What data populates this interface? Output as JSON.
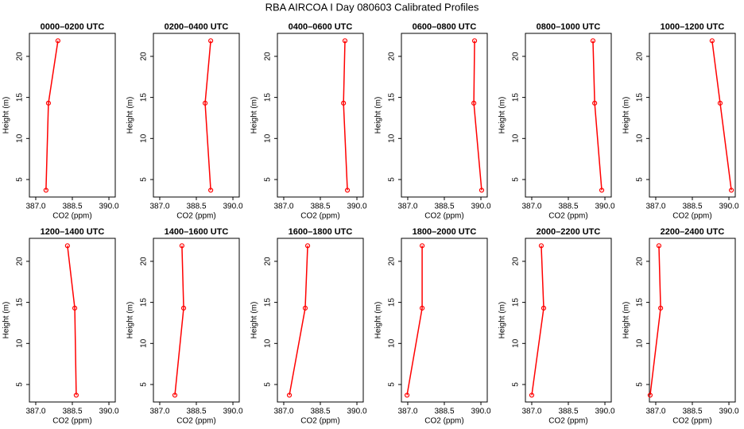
{
  "title": "RBA AIRCOA I  Day 080603  Calibrated Profiles",
  "chart_data": [
    {
      "type": "line",
      "title": "0000–0200 UTC",
      "xlabel": "CO2 (ppm)",
      "ylabel": "Height (m)",
      "xlim": [
        386.74,
        390.26
      ],
      "ylim": [
        2.87,
        22.8
      ],
      "xticks": [
        {
          "value": 387,
          "label": "387.0"
        },
        388.5,
        {
          "value": 390,
          "label": "390.0"
        }
      ],
      "yticks": [
        5,
        10,
        15,
        20
      ],
      "series": [
        {
          "color": "#ff0000",
          "x": [
            387.91,
            387.52,
            387.42
          ],
          "values": [
            21.9,
            14.3,
            3.7
          ]
        }
      ]
    },
    {
      "type": "line",
      "title": "0200–0400 UTC",
      "xlabel": "CO2 (ppm)",
      "ylabel": "Height (m)",
      "xlim": [
        386.74,
        390.26
      ],
      "ylim": [
        2.87,
        22.8
      ],
      "xticks": [
        {
          "value": 387,
          "label": "387.0"
        },
        388.5,
        {
          "value": 390,
          "label": "390.0"
        }
      ],
      "yticks": [
        5,
        10,
        15,
        20
      ],
      "series": [
        {
          "color": "#ff0000",
          "x": [
            389.09,
            388.86,
            389.09
          ],
          "values": [
            21.9,
            14.3,
            3.7
          ]
        }
      ]
    },
    {
      "type": "line",
      "title": "0400–0600 UTC",
      "xlabel": "CO2 (ppm)",
      "ylabel": "Height (m)",
      "xlim": [
        386.74,
        390.26
      ],
      "ylim": [
        2.87,
        22.8
      ],
      "xticks": [
        {
          "value": 387,
          "label": "387.0"
        },
        388.5,
        {
          "value": 390,
          "label": "390.0"
        }
      ],
      "yticks": [
        5,
        10,
        15,
        20
      ],
      "series": [
        {
          "color": "#ff0000",
          "x": [
            389.51,
            389.45,
            389.61
          ],
          "values": [
            21.9,
            14.3,
            3.7
          ]
        }
      ]
    },
    {
      "type": "line",
      "title": "0600–0800 UTC",
      "xlabel": "CO2 (ppm)",
      "ylabel": "Height (m)",
      "xlim": [
        386.74,
        390.26
      ],
      "ylim": [
        2.87,
        22.8
      ],
      "xticks": [
        {
          "value": 387,
          "label": "387.0"
        },
        388.5,
        {
          "value": 390,
          "label": "390.0"
        }
      ],
      "yticks": [
        5,
        10,
        15,
        20
      ],
      "series": [
        {
          "color": "#ff0000",
          "x": [
            389.74,
            389.71,
            390.03
          ],
          "values": [
            21.9,
            14.3,
            3.7
          ]
        }
      ]
    },
    {
      "type": "line",
      "title": "0800–1000 UTC",
      "xlabel": "CO2 (ppm)",
      "ylabel": "Height (m)",
      "xlim": [
        386.74,
        390.26
      ],
      "ylim": [
        2.87,
        22.8
      ],
      "xticks": [
        {
          "value": 387,
          "label": "387.0"
        },
        388.5,
        {
          "value": 390,
          "label": "390.0"
        }
      ],
      "yticks": [
        5,
        10,
        15,
        20
      ],
      "series": [
        {
          "color": "#ff0000",
          "x": [
            389.51,
            389.58,
            389.87
          ],
          "values": [
            21.9,
            14.3,
            3.7
          ]
        }
      ]
    },
    {
      "type": "line",
      "title": "1000–1200 UTC",
      "xlabel": "CO2 (ppm)",
      "ylabel": "Height (m)",
      "xlim": [
        386.74,
        390.26
      ],
      "ylim": [
        2.87,
        22.8
      ],
      "xticks": [
        {
          "value": 387,
          "label": "387.0"
        },
        388.5,
        {
          "value": 390,
          "label": "390.0"
        }
      ],
      "yticks": [
        5,
        10,
        15,
        20
      ],
      "series": [
        {
          "color": "#ff0000",
          "x": [
            389.31,
            389.64,
            390.1
          ],
          "values": [
            21.9,
            14.3,
            3.7
          ]
        }
      ]
    },
    {
      "type": "line",
      "title": "1200–1400 UTC",
      "xlabel": "CO2 (ppm)",
      "ylabel": "Height (m)",
      "xlim": [
        386.74,
        390.26
      ],
      "ylim": [
        2.87,
        22.8
      ],
      "xticks": [
        {
          "value": 387,
          "label": "387.0"
        },
        388.5,
        {
          "value": 390,
          "label": "390.0"
        }
      ],
      "yticks": [
        5,
        10,
        15,
        20
      ],
      "series": [
        {
          "color": "#ff0000",
          "x": [
            388.3,
            388.6,
            388.66
          ],
          "values": [
            21.9,
            14.3,
            3.7
          ]
        }
      ]
    },
    {
      "type": "line",
      "title": "1400–1600 UTC",
      "xlabel": "CO2 (ppm)",
      "ylabel": "Height (m)",
      "xlim": [
        386.74,
        390.26
      ],
      "ylim": [
        2.87,
        22.8
      ],
      "xticks": [
        {
          "value": 387,
          "label": "387.0"
        },
        388.5,
        {
          "value": 390,
          "label": "390.0"
        }
      ],
      "yticks": [
        5,
        10,
        15,
        20
      ],
      "series": [
        {
          "color": "#ff0000",
          "x": [
            387.91,
            387.98,
            387.62
          ],
          "values": [
            21.9,
            14.3,
            3.7
          ]
        }
      ]
    },
    {
      "type": "line",
      "title": "1600–1800 UTC",
      "xlabel": "CO2 (ppm)",
      "ylabel": "Height (m)",
      "xlim": [
        386.74,
        390.26
      ],
      "ylim": [
        2.87,
        22.8
      ],
      "xticks": [
        {
          "value": 387,
          "label": "387.0"
        },
        388.5,
        {
          "value": 390,
          "label": "390.0"
        }
      ],
      "yticks": [
        5,
        10,
        15,
        20
      ],
      "series": [
        {
          "color": "#ff0000",
          "x": [
            387.98,
            387.88,
            387.23
          ],
          "values": [
            21.9,
            14.3,
            3.7
          ]
        }
      ]
    },
    {
      "type": "line",
      "title": "1800–2000 UTC",
      "xlabel": "CO2 (ppm)",
      "ylabel": "Height (m)",
      "xlim": [
        386.74,
        390.26
      ],
      "ylim": [
        2.87,
        22.8
      ],
      "xticks": [
        {
          "value": 387,
          "label": "387.0"
        },
        388.5,
        {
          "value": 390,
          "label": "390.0"
        }
      ],
      "yticks": [
        5,
        10,
        15,
        20
      ],
      "series": [
        {
          "color": "#ff0000",
          "x": [
            387.59,
            387.59,
            386.97
          ],
          "values": [
            21.9,
            14.3,
            3.7
          ]
        }
      ]
    },
    {
      "type": "line",
      "title": "2000–2200 UTC",
      "xlabel": "CO2 (ppm)",
      "ylabel": "Height (m)",
      "xlim": [
        386.74,
        390.26
      ],
      "ylim": [
        2.87,
        22.8
      ],
      "xticks": [
        {
          "value": 387,
          "label": "387.0"
        },
        388.5,
        {
          "value": 390,
          "label": "390.0"
        }
      ],
      "yticks": [
        5,
        10,
        15,
        20
      ],
      "series": [
        {
          "color": "#ff0000",
          "x": [
            387.39,
            387.49,
            387.0
          ],
          "values": [
            21.9,
            14.3,
            3.7
          ]
        }
      ]
    },
    {
      "type": "line",
      "title": "2200–2400 UTC",
      "xlabel": "CO2 (ppm)",
      "ylabel": "Height (m)",
      "xlim": [
        386.74,
        390.26
      ],
      "ylim": [
        2.87,
        22.8
      ],
      "xticks": [
        {
          "value": 387,
          "label": "387.0"
        },
        388.5,
        {
          "value": 390,
          "label": "390.0"
        }
      ],
      "yticks": [
        5,
        10,
        15,
        20
      ],
      "series": [
        {
          "color": "#ff0000",
          "x": [
            387.13,
            387.2,
            386.77
          ],
          "values": [
            21.9,
            14.3,
            3.7
          ]
        }
      ]
    }
  ]
}
